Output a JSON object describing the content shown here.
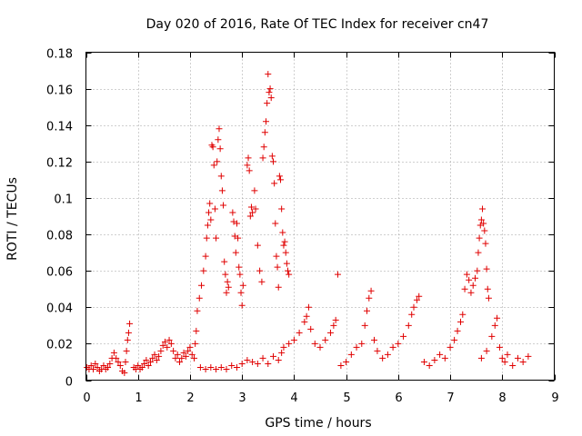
{
  "chart_data": {
    "type": "scatter",
    "title": "Day 020 of 2016, Rate Of TEC Index for receiver cn47",
    "xlabel": "GPS time / hours",
    "ylabel": "ROTI / TECUs",
    "xlim": [
      0,
      9
    ],
    "ylim": [
      0,
      0.18
    ],
    "xticks": [
      0,
      1,
      2,
      3,
      4,
      5,
      6,
      7,
      8,
      9
    ],
    "xtick_labels": [
      "0",
      "1",
      "2",
      "3",
      "4",
      "5",
      "6",
      "7",
      "8",
      "9"
    ],
    "yticks": [
      0,
      0.02,
      0.04,
      0.06,
      0.08,
      0.1,
      0.12,
      0.14,
      0.16,
      0.18
    ],
    "ytick_labels": [
      "0",
      "0.02",
      "0.04",
      "0.06",
      "0.08",
      "0.1",
      "0.12",
      "0.14",
      "0.16",
      "0.18"
    ],
    "grid": true,
    "marker": "plus",
    "color": "#e00000",
    "series": [
      {
        "name": "ROTI",
        "points": [
          [
            0.02,
            0.007
          ],
          [
            0.06,
            0.006
          ],
          [
            0.1,
            0.008
          ],
          [
            0.14,
            0.006
          ],
          [
            0.18,
            0.009
          ],
          [
            0.22,
            0.007
          ],
          [
            0.26,
            0.005
          ],
          [
            0.3,
            0.006
          ],
          [
            0.34,
            0.008
          ],
          [
            0.38,
            0.006
          ],
          [
            0.42,
            0.007
          ],
          [
            0.46,
            0.009
          ],
          [
            0.5,
            0.012
          ],
          [
            0.54,
            0.015
          ],
          [
            0.58,
            0.012
          ],
          [
            0.62,
            0.01
          ],
          [
            0.66,
            0.008
          ],
          [
            0.7,
            0.005
          ],
          [
            0.74,
            0.004
          ],
          [
            0.76,
            0.01
          ],
          [
            0.78,
            0.016
          ],
          [
            0.8,
            0.022
          ],
          [
            0.82,
            0.026
          ],
          [
            0.84,
            0.031
          ],
          [
            0.92,
            0.007
          ],
          [
            0.96,
            0.006
          ],
          [
            1.0,
            0.008
          ],
          [
            1.04,
            0.006
          ],
          [
            1.08,
            0.007
          ],
          [
            1.12,
            0.009
          ],
          [
            1.16,
            0.011
          ],
          [
            1.2,
            0.008
          ],
          [
            1.24,
            0.01
          ],
          [
            1.28,
            0.012
          ],
          [
            1.32,
            0.014
          ],
          [
            1.36,
            0.011
          ],
          [
            1.4,
            0.013
          ],
          [
            1.44,
            0.016
          ],
          [
            1.48,
            0.019
          ],
          [
            1.52,
            0.021
          ],
          [
            1.56,
            0.018
          ],
          [
            1.6,
            0.022
          ],
          [
            1.64,
            0.02
          ],
          [
            1.68,
            0.016
          ],
          [
            1.72,
            0.012
          ],
          [
            1.76,
            0.014
          ],
          [
            1.8,
            0.01
          ],
          [
            1.84,
            0.012
          ],
          [
            1.88,
            0.015
          ],
          [
            1.92,
            0.013
          ],
          [
            1.96,
            0.016
          ],
          [
            2.0,
            0.018
          ],
          [
            2.04,
            0.014
          ],
          [
            2.08,
            0.012
          ],
          [
            2.1,
            0.02
          ],
          [
            2.12,
            0.027
          ],
          [
            2.14,
            0.038
          ],
          [
            2.18,
            0.045
          ],
          [
            2.22,
            0.052
          ],
          [
            2.26,
            0.06
          ],
          [
            2.3,
            0.068
          ],
          [
            2.32,
            0.078
          ],
          [
            2.34,
            0.085
          ],
          [
            2.36,
            0.092
          ],
          [
            2.38,
            0.097
          ],
          [
            2.4,
            0.088
          ],
          [
            2.42,
            0.129
          ],
          [
            2.44,
            0.128
          ],
          [
            2.46,
            0.118
          ],
          [
            2.48,
            0.094
          ],
          [
            2.5,
            0.078
          ],
          [
            2.52,
            0.12
          ],
          [
            2.54,
            0.132
          ],
          [
            2.56,
            0.138
          ],
          [
            2.58,
            0.127
          ],
          [
            2.6,
            0.112
          ],
          [
            2.62,
            0.104
          ],
          [
            2.64,
            0.096
          ],
          [
            2.66,
            0.065
          ],
          [
            2.68,
            0.058
          ],
          [
            2.7,
            0.048
          ],
          [
            2.72,
            0.054
          ],
          [
            2.74,
            0.051
          ],
          [
            2.2,
            0.007
          ],
          [
            2.3,
            0.006
          ],
          [
            2.4,
            0.007
          ],
          [
            2.5,
            0.006
          ],
          [
            2.6,
            0.007
          ],
          [
            2.7,
            0.006
          ],
          [
            2.8,
            0.008
          ],
          [
            2.9,
            0.007
          ],
          [
            3.0,
            0.009
          ],
          [
            2.82,
            0.092
          ],
          [
            2.84,
            0.087
          ],
          [
            2.86,
            0.079
          ],
          [
            2.88,
            0.07
          ],
          [
            2.9,
            0.086
          ],
          [
            2.92,
            0.078
          ],
          [
            2.94,
            0.062
          ],
          [
            2.96,
            0.058
          ],
          [
            2.98,
            0.048
          ],
          [
            3.0,
            0.041
          ],
          [
            3.02,
            0.052
          ],
          [
            3.1,
            0.118
          ],
          [
            3.12,
            0.122
          ],
          [
            3.14,
            0.115
          ],
          [
            3.16,
            0.09
          ],
          [
            3.18,
            0.095
          ],
          [
            3.2,
            0.092
          ],
          [
            3.24,
            0.104
          ],
          [
            3.26,
            0.094
          ],
          [
            3.3,
            0.074
          ],
          [
            3.34,
            0.06
          ],
          [
            3.38,
            0.054
          ],
          [
            3.4,
            0.122
          ],
          [
            3.42,
            0.128
          ],
          [
            3.44,
            0.136
          ],
          [
            3.46,
            0.142
          ],
          [
            3.48,
            0.152
          ],
          [
            3.5,
            0.168
          ],
          [
            3.52,
            0.158
          ],
          [
            3.54,
            0.16
          ],
          [
            3.56,
            0.155
          ],
          [
            3.58,
            0.123
          ],
          [
            3.6,
            0.12
          ],
          [
            3.62,
            0.108
          ],
          [
            3.64,
            0.086
          ],
          [
            3.66,
            0.068
          ],
          [
            3.68,
            0.062
          ],
          [
            3.7,
            0.051
          ],
          [
            3.1,
            0.011
          ],
          [
            3.2,
            0.01
          ],
          [
            3.3,
            0.009
          ],
          [
            3.4,
            0.012
          ],
          [
            3.5,
            0.009
          ],
          [
            3.6,
            0.013
          ],
          [
            3.7,
            0.011
          ],
          [
            3.76,
            0.015
          ],
          [
            3.8,
            0.018
          ],
          [
            3.72,
            0.112
          ],
          [
            3.74,
            0.11
          ],
          [
            3.76,
            0.094
          ],
          [
            3.78,
            0.081
          ],
          [
            3.8,
            0.074
          ],
          [
            3.82,
            0.076
          ],
          [
            3.84,
            0.07
          ],
          [
            3.86,
            0.064
          ],
          [
            3.88,
            0.06
          ],
          [
            3.9,
            0.058
          ],
          [
            3.9,
            0.02
          ],
          [
            4.0,
            0.022
          ],
          [
            4.1,
            0.026
          ],
          [
            4.2,
            0.032
          ],
          [
            4.24,
            0.035
          ],
          [
            4.28,
            0.04
          ],
          [
            4.32,
            0.028
          ],
          [
            4.4,
            0.02
          ],
          [
            4.5,
            0.018
          ],
          [
            4.6,
            0.022
          ],
          [
            4.7,
            0.026
          ],
          [
            4.76,
            0.03
          ],
          [
            4.8,
            0.033
          ],
          [
            4.84,
            0.058
          ],
          [
            4.9,
            0.008
          ],
          [
            5.0,
            0.01
          ],
          [
            5.1,
            0.014
          ],
          [
            5.2,
            0.018
          ],
          [
            5.3,
            0.02
          ],
          [
            5.36,
            0.03
          ],
          [
            5.4,
            0.038
          ],
          [
            5.44,
            0.045
          ],
          [
            5.48,
            0.049
          ],
          [
            5.54,
            0.022
          ],
          [
            5.6,
            0.016
          ],
          [
            5.7,
            0.012
          ],
          [
            5.8,
            0.014
          ],
          [
            5.9,
            0.018
          ],
          [
            6.0,
            0.02
          ],
          [
            6.1,
            0.024
          ],
          [
            6.2,
            0.03
          ],
          [
            6.26,
            0.036
          ],
          [
            6.3,
            0.04
          ],
          [
            6.36,
            0.044
          ],
          [
            6.4,
            0.046
          ],
          [
            6.5,
            0.01
          ],
          [
            6.6,
            0.008
          ],
          [
            6.7,
            0.011
          ],
          [
            6.8,
            0.014
          ],
          [
            6.9,
            0.012
          ],
          [
            7.0,
            0.018
          ],
          [
            7.08,
            0.022
          ],
          [
            7.14,
            0.027
          ],
          [
            7.2,
            0.032
          ],
          [
            7.24,
            0.036
          ],
          [
            7.28,
            0.05
          ],
          [
            7.32,
            0.058
          ],
          [
            7.36,
            0.055
          ],
          [
            7.4,
            0.048
          ],
          [
            7.44,
            0.052
          ],
          [
            7.48,
            0.056
          ],
          [
            7.52,
            0.06
          ],
          [
            7.54,
            0.07
          ],
          [
            7.56,
            0.078
          ],
          [
            7.58,
            0.085
          ],
          [
            7.6,
            0.088
          ],
          [
            7.62,
            0.094
          ],
          [
            7.64,
            0.086
          ],
          [
            7.66,
            0.082
          ],
          [
            7.68,
            0.075
          ],
          [
            7.7,
            0.061
          ],
          [
            7.72,
            0.05
          ],
          [
            7.74,
            0.045
          ],
          [
            7.6,
            0.012
          ],
          [
            7.7,
            0.016
          ],
          [
            7.8,
            0.024
          ],
          [
            7.86,
            0.03
          ],
          [
            7.9,
            0.034
          ],
          [
            7.95,
            0.018
          ],
          [
            8.0,
            0.012
          ],
          [
            8.05,
            0.01
          ],
          [
            8.1,
            0.014
          ],
          [
            8.2,
            0.008
          ],
          [
            8.3,
            0.012
          ],
          [
            8.4,
            0.01
          ],
          [
            8.5,
            0.013
          ]
        ]
      }
    ]
  }
}
